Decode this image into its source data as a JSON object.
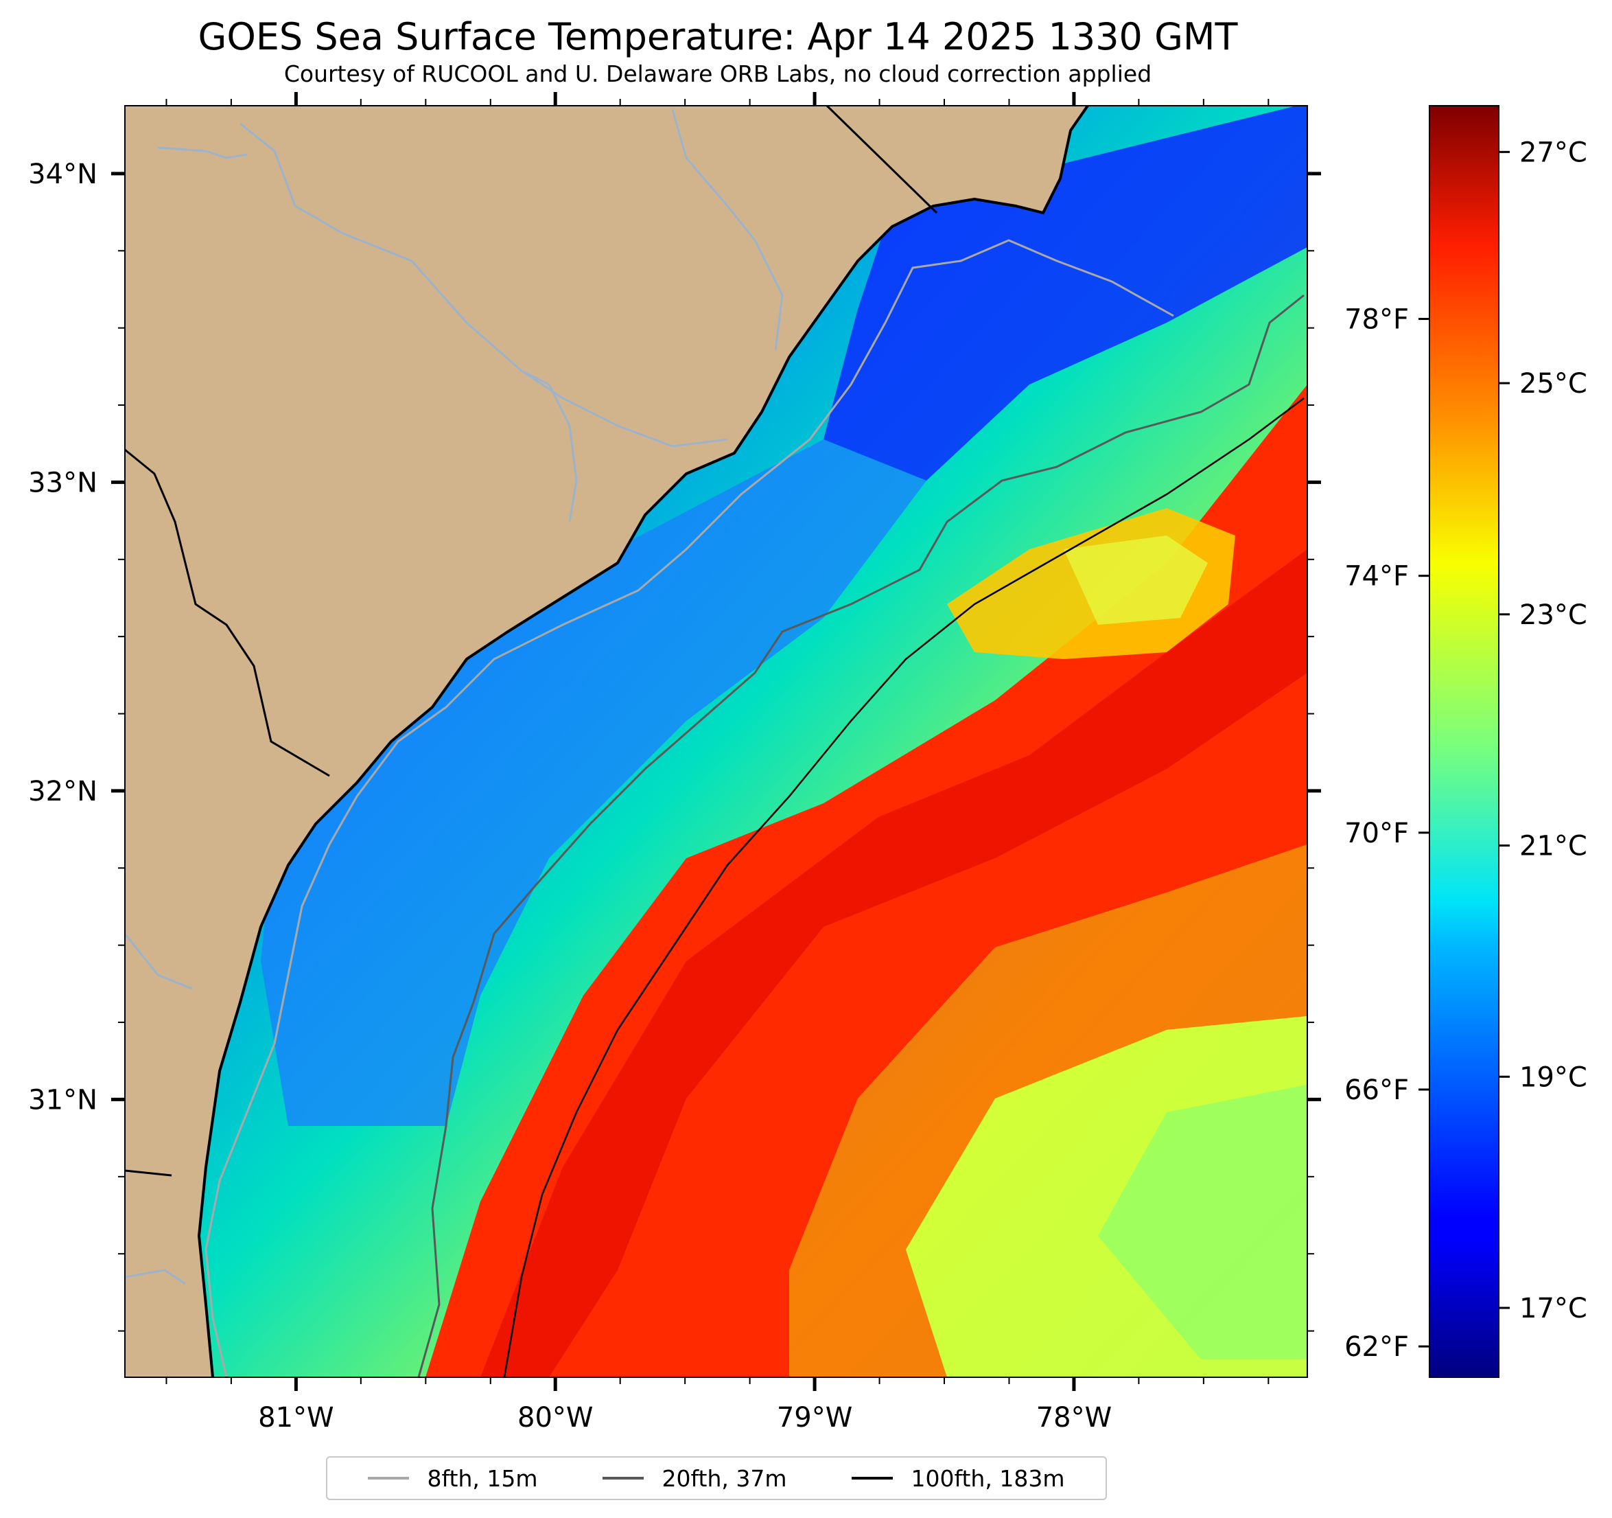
{
  "title": "GOES Sea Surface Temperature: Apr 14 2025 1330 GMT",
  "subtitle": "Courtesy of RUCOOL and U. Delaware ORB Labs, no cloud correction applied",
  "map": {
    "lon_range": [
      -81.66,
      -77.1
    ],
    "lat_range": [
      30.1,
      34.22
    ],
    "lon_ticks": [
      {
        "value": -81,
        "label": "81°W"
      },
      {
        "value": -80,
        "label": "80°W"
      },
      {
        "value": -79,
        "label": "79°W"
      },
      {
        "value": -78,
        "label": "78°W"
      }
    ],
    "lat_ticks": [
      {
        "value": 34,
        "label": "34°N"
      },
      {
        "value": 33,
        "label": "33°N"
      },
      {
        "value": 32,
        "label": "32°N"
      },
      {
        "value": 31,
        "label": "31°N"
      }
    ],
    "colors": {
      "land": "#d2b48c",
      "rivers": "#9db3cc",
      "coastline": "#000000",
      "border": "#000000"
    }
  },
  "colorbar": {
    "celsius_range": [
      16.4,
      27.4
    ],
    "colormap": "jet",
    "celsius_ticks": [
      {
        "value": 17,
        "label": "17°C"
      },
      {
        "value": 19,
        "label": "19°C"
      },
      {
        "value": 21,
        "label": "21°C"
      },
      {
        "value": 23,
        "label": "23°C"
      },
      {
        "value": 25,
        "label": "25°C"
      },
      {
        "value": 27,
        "label": "27°C"
      }
    ],
    "fahrenheit_ticks": [
      {
        "value": 62,
        "label": "62°F"
      },
      {
        "value": 66,
        "label": "66°F"
      },
      {
        "value": 70,
        "label": "70°F"
      },
      {
        "value": 74,
        "label": "74°F"
      },
      {
        "value": 78,
        "label": "78°F"
      }
    ]
  },
  "legend": {
    "items": [
      {
        "label": "8fth, 15m",
        "color": "#a9a9a9"
      },
      {
        "label": "20fth, 37m",
        "color": "#595959"
      },
      {
        "label": "100fth, 183m",
        "color": "#000000"
      }
    ]
  }
}
